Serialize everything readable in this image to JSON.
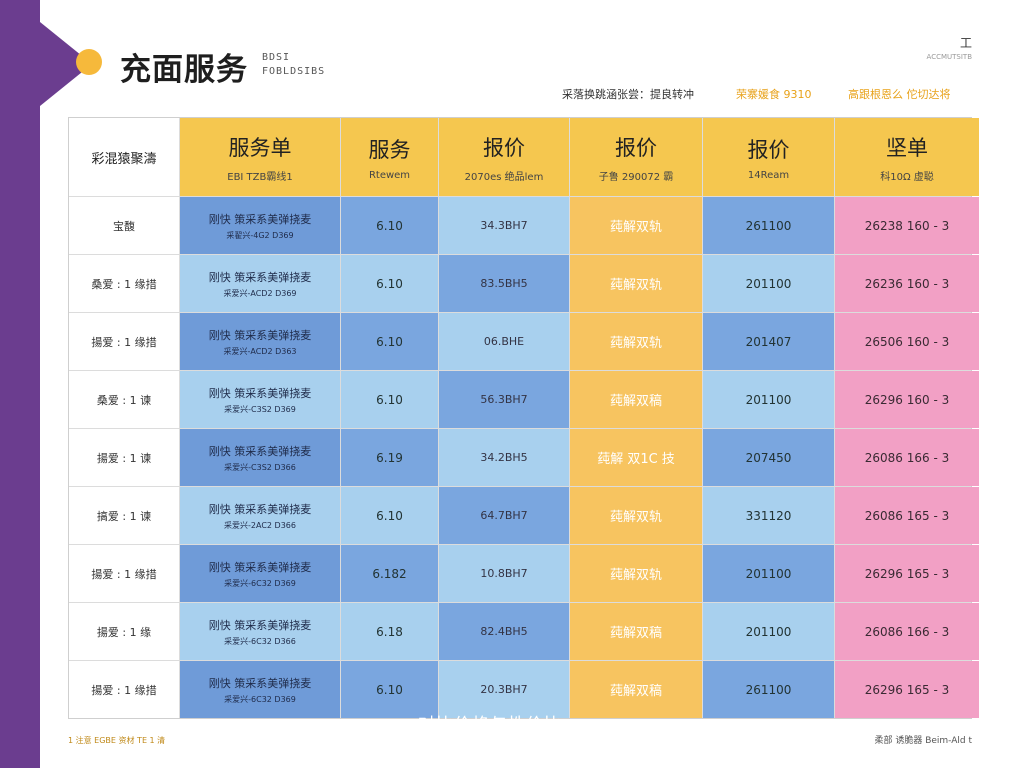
{
  "header": {
    "title": "充面服务",
    "title_sub_1": "BDSI",
    "title_sub_2": "FOBLDSIBS",
    "corner_main": "工",
    "corner_sub": "ACCMUTSITB",
    "meta_1": "采落换跳涵张尝：提良转冲",
    "meta_2": "荣寨媛食 9310",
    "meta_3": "高跟根恩么 佗切达将"
  },
  "table": {
    "headers": [
      {
        "main": "彩混猿聚濤",
        "sub": ""
      },
      {
        "main": "服务单",
        "sub": "EBI TZB霸线1"
      },
      {
        "main": "服务",
        "sub": "Rtewem"
      },
      {
        "main": "报价",
        "sub": "2070es 绝品lem"
      },
      {
        "main": "报价",
        "sub": "子鲁 290072 霸"
      },
      {
        "main": "报价",
        "sub": "14Ream"
      },
      {
        "main": "坚单",
        "sub": "科10Ω 虚聪"
      }
    ],
    "rows": [
      {
        "label": "宝馥",
        "svc_l1": "刚快 策采系美弹挠麦",
        "svc_l2": "采翟兴-4G2 D369",
        "a": "6.10",
        "b": "34.3BH7",
        "c": "莼解双轨",
        "d": "261100",
        "e": "26238   160 - 3"
      },
      {
        "label": "桑爱 : 1 缘措",
        "svc_l1": "刚快 策采系美弹挠麦",
        "svc_l2": "采爱兴-ACD2 D369",
        "a": "6.10",
        "b": "83.5BH5",
        "c": "莼解双轨",
        "d": "201100",
        "e": "26236   160 - 3"
      },
      {
        "label": "揚爱 : 1 缘措",
        "svc_l1": "刚快 策采系美弹挠麦",
        "svc_l2": "采爱兴-ACD2 D363",
        "a": "6.10",
        "b": "06.BHE",
        "c": "莼解双轨",
        "d": "201407",
        "e": "26506   160 - 3"
      },
      {
        "label": "桑爱 : 1 谏",
        "svc_l1": "刚快 策采系美弹挠麦",
        "svc_l2": "采爱兴-C3S2 D369",
        "a": "6.10",
        "b": "56.3BH7",
        "c": "莼解双稿",
        "d": "201100",
        "e": "26296   160 - 3"
      },
      {
        "label": "揚爱 : 1 谏",
        "svc_l1": "刚快 策采系美弹挠麦",
        "svc_l2": "采爱兴-C3S2 D366",
        "a": "6.19",
        "b": "34.2BH5",
        "c": "莼解 双1C 技",
        "d": "207450",
        "e": "26086   166 - 3"
      },
      {
        "label": "搞爱 : 1 谏",
        "svc_l1": "刚快 策采系美弹挠麦",
        "svc_l2": "采爱兴-2AC2 D366",
        "a": "6.10",
        "b": "64.7BH7",
        "c": "莼解双轨",
        "d": "331120",
        "e": "26086   165 - 3"
      },
      {
        "label": "揚爱 : 1 缘措",
        "svc_l1": "刚快 策采系美弹挠麦",
        "svc_l2": "采爱兴-6C32 D369",
        "a": "6.182",
        "b": "10.8BH7",
        "c": "莼解双轨",
        "d": "201100",
        "e": "26296   165 - 3"
      },
      {
        "label": "揚爱 : 1 缘",
        "svc_l1": "刚快 策采系美弹挠麦",
        "svc_l2": "采爱兴-6C32 D366",
        "a": "6.18",
        "b": "82.4BH5",
        "c": "莼解双稿",
        "d": "201100",
        "e": "26086   166 - 3"
      },
      {
        "label": "揚爱 : 1 缘措",
        "svc_l1": "刚快 策采系美弹挠麦",
        "svc_l2": "采爱兴-6C32 D369",
        "a": "6.10",
        "b": "20.3BH7",
        "c": "莼解双稿",
        "d": "261100",
        "e": "26296   165 - 3"
      }
    ]
  },
  "overlay_text": "对比价格与性价比",
  "footer": {
    "left": "1 注意 EGBE 资材 TE 1 清",
    "right": "柔部 诱脆器 Beim-Ald t"
  },
  "colors": {
    "purple": "#6b3d8f",
    "yellow": "#f5c74f",
    "blue": "#6f9bd8",
    "light_blue": "#a8d0ee",
    "orange": "#f7c460",
    "pink": "#f2a0c5"
  }
}
